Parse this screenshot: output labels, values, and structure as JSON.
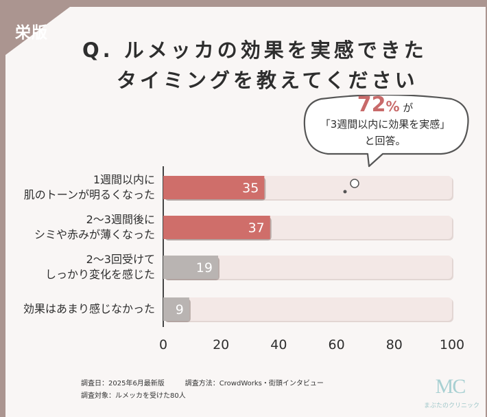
{
  "badge": "栄版",
  "title": {
    "line1": "Q. ルメッカの効果を実感できた",
    "line2": "タイミングを教えてください"
  },
  "callout": {
    "percent": "72",
    "percent_unit": "%",
    "ga": "が",
    "line2": "「3週間以内に効果を実感」",
    "line3": "と回答。"
  },
  "chart_data": {
    "type": "bar",
    "orientation": "horizontal",
    "categories": [
      [
        "1週間以内に",
        "肌のトーンが明るくなった"
      ],
      [
        "2〜3週間後に",
        "シミや赤みが薄くなった"
      ],
      [
        "2〜3回受けて",
        "しっかり変化を感じた"
      ],
      [
        "効果はあまり感じなかった"
      ]
    ],
    "values": [
      35,
      37,
      19,
      9
    ],
    "xlim": [
      0,
      100
    ],
    "xticks": [
      "0",
      "20",
      "40",
      "60",
      "80",
      "100"
    ],
    "bar_colors": [
      "#cf6e6a",
      "#cf6e6a",
      "#b9b4b2",
      "#b9b4b2"
    ],
    "track_color": "#f3e8e6",
    "grid": false
  },
  "footer": {
    "line1": "調査日：2025年6月最新版　　　調査方法：CrowdWorks・街頭インタビュー",
    "line2": "調査対象：ルメッカを受けた80人"
  },
  "logo": {
    "mark": "MC",
    "name": "まぶたのクリニック"
  }
}
